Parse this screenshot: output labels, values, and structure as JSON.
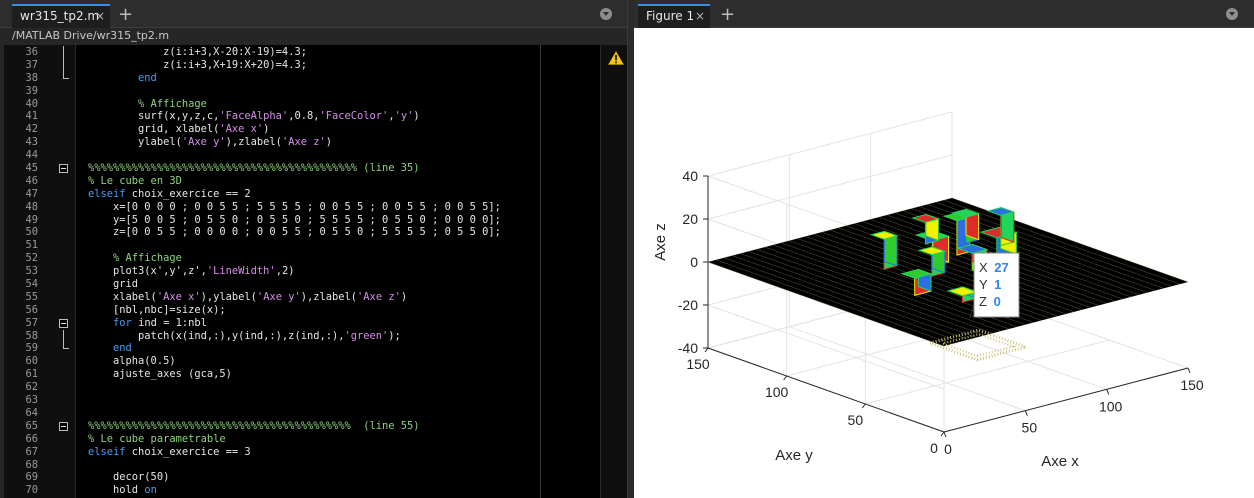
{
  "editor": {
    "tab_label": "wr315_tp2.m",
    "close_glyph": "×",
    "add_glyph": "+",
    "path": "/MATLAB Drive/wr315_tp2.m",
    "warning_icon": "warning-triangle-icon",
    "colors": {
      "keyword": "#4a9cf2",
      "string": "#d58ee8",
      "comment": "#8fd27e",
      "text": "#e6e6e6"
    },
    "lines": [
      {
        "n": "36",
        "fold": "mid",
        "seg": [
          [
            "            z(i:i+3,X-20:X-19)=4.3;",
            ""
          ]
        ]
      },
      {
        "n": "37",
        "fold": "mid",
        "seg": [
          [
            "            z(i:i+3,X+19:X+20)=4.3;",
            ""
          ]
        ]
      },
      {
        "n": "38",
        "fold": "end",
        "seg": [
          [
            "        ",
            ""
          ],
          [
            "end",
            "kw"
          ]
        ]
      },
      {
        "n": "39",
        "fold": "",
        "seg": []
      },
      {
        "n": "40",
        "fold": "",
        "seg": [
          [
            "        ",
            ""
          ],
          [
            "% Affichage",
            "cm"
          ]
        ]
      },
      {
        "n": "41",
        "fold": "",
        "seg": [
          [
            "        surf(x,y,z,c,",
            ""
          ],
          [
            "'FaceAlpha'",
            "str"
          ],
          [
            ",0.8,",
            ""
          ],
          [
            "'FaceColor'",
            "str"
          ],
          [
            ",",
            ""
          ],
          [
            "'y'",
            "str"
          ],
          [
            ")",
            ""
          ]
        ]
      },
      {
        "n": "42",
        "fold": "",
        "seg": [
          [
            "        grid, xlabel(",
            ""
          ],
          [
            "'Axe x'",
            "str"
          ],
          [
            ")",
            ""
          ]
        ]
      },
      {
        "n": "43",
        "fold": "",
        "seg": [
          [
            "        ylabel(",
            ""
          ],
          [
            "'Axe y'",
            "str"
          ],
          [
            "),zlabel(",
            ""
          ],
          [
            "'Axe z'",
            "str"
          ],
          [
            ")",
            ""
          ]
        ]
      },
      {
        "n": "44",
        "fold": "",
        "seg": []
      },
      {
        "n": "45",
        "fold": "box",
        "seg": [
          [
            "%%%%%%%%%%%%%%%%%%%%%%%%%%%%%%%%%%%%%%%%%%% (line 35)",
            "cm"
          ]
        ]
      },
      {
        "n": "46",
        "fold": "",
        "seg": [
          [
            "% Le cube en 3D",
            "cm"
          ]
        ]
      },
      {
        "n": "47",
        "fold": "",
        "seg": [
          [
            "elseif",
            "kw"
          ],
          [
            " choix_exercice == 2",
            ""
          ]
        ]
      },
      {
        "n": "48",
        "fold": "",
        "seg": [
          [
            "    x=[0 0 0 0 ; 0 0 5 5 ; 5 5 5 5 ; 0 0 5 5 ; 0 0 5 5 ; 0 0 5 5];",
            ""
          ]
        ]
      },
      {
        "n": "49",
        "fold": "",
        "seg": [
          [
            "    y=[5 0 0 5 ; 0 5 5 0 ; 0 5 5 0 ; 5 5 5 5 ; 0 5 5 0 ; 0 0 0 0];",
            ""
          ]
        ]
      },
      {
        "n": "50",
        "fold": "",
        "seg": [
          [
            "    z=[0 0 5 5 ; 0 0 0 0 ; 0 0 5 5 ; 0 5 5 0 ; 5 5 5 5 ; 0 5 5 0];",
            ""
          ]
        ]
      },
      {
        "n": "51",
        "fold": "",
        "seg": []
      },
      {
        "n": "52",
        "fold": "",
        "seg": [
          [
            "    ",
            ""
          ],
          [
            "% Affichage",
            "cm"
          ]
        ]
      },
      {
        "n": "53",
        "fold": "",
        "seg": [
          [
            "    plot3(x',y',z',",
            ""
          ],
          [
            "'LineWidth'",
            "str"
          ],
          [
            ",2)",
            ""
          ]
        ]
      },
      {
        "n": "54",
        "fold": "",
        "seg": [
          [
            "    grid",
            ""
          ]
        ]
      },
      {
        "n": "55",
        "fold": "",
        "seg": [
          [
            "    xlabel(",
            ""
          ],
          [
            "'Axe x'",
            "str"
          ],
          [
            "),ylabel(",
            ""
          ],
          [
            "'Axe y'",
            "str"
          ],
          [
            "),zlabel(",
            ""
          ],
          [
            "'Axe z'",
            "str"
          ],
          [
            ")",
            ""
          ]
        ]
      },
      {
        "n": "56",
        "fold": "",
        "seg": [
          [
            "    [nbl,nbc]=size(x);",
            ""
          ]
        ]
      },
      {
        "n": "57",
        "fold": "box",
        "seg": [
          [
            "    ",
            ""
          ],
          [
            "for",
            "kw"
          ],
          [
            " ind = 1:nbl",
            ""
          ]
        ]
      },
      {
        "n": "58",
        "fold": "mid",
        "seg": [
          [
            "        patch(x(ind,:),y(ind,:),z(ind,:),",
            ""
          ],
          [
            "'green'",
            "str"
          ],
          [
            ");",
            ""
          ]
        ]
      },
      {
        "n": "59",
        "fold": "end",
        "seg": [
          [
            "    ",
            ""
          ],
          [
            "end",
            "kw"
          ]
        ]
      },
      {
        "n": "60",
        "fold": "",
        "seg": [
          [
            "    alpha(0.5)",
            ""
          ]
        ]
      },
      {
        "n": "61",
        "fold": "",
        "seg": [
          [
            "    ajuste_axes (gca,5)",
            ""
          ]
        ]
      },
      {
        "n": "62",
        "fold": "",
        "seg": []
      },
      {
        "n": "63",
        "fold": "",
        "seg": []
      },
      {
        "n": "64",
        "fold": "",
        "seg": []
      },
      {
        "n": "65",
        "fold": "box",
        "seg": [
          [
            "%%%%%%%%%%%%%%%%%%%%%%%%%%%%%%%%%%%%%%%%%%  (line 55)",
            "cm"
          ]
        ]
      },
      {
        "n": "66",
        "fold": "",
        "seg": [
          [
            "% Le cube parametrable",
            "cm"
          ]
        ]
      },
      {
        "n": "67",
        "fold": "",
        "seg": [
          [
            "elseif",
            "kw"
          ],
          [
            " choix_exercice == 3",
            ""
          ]
        ]
      },
      {
        "n": "68",
        "fold": "",
        "seg": []
      },
      {
        "n": "69",
        "fold": "",
        "seg": [
          [
            "    decor(50)",
            ""
          ]
        ]
      },
      {
        "n": "70",
        "fold": "",
        "seg": [
          [
            "    hold ",
            ""
          ],
          [
            "on",
            "kw"
          ]
        ]
      }
    ]
  },
  "figure": {
    "tab_label": "Figure 1",
    "close_glyph": "×",
    "add_glyph": "+",
    "datatip": {
      "x_label": "X",
      "x_value": "27",
      "y_label": "Y",
      "y_value": "1",
      "z_label": "Z",
      "z_value": "0",
      "value_color": "#2f86e6"
    },
    "chart_data": {
      "type": "surface",
      "xlabel": "Axe x",
      "ylabel": "Axe y",
      "zlabel": "Axe z",
      "xlim": [
        0,
        150
      ],
      "ylim": [
        0,
        150
      ],
      "zlim": [
        -40,
        40
      ],
      "x_ticks": [
        "0",
        "50",
        "100",
        "150"
      ],
      "y_ticks": [
        "0",
        "50",
        "100",
        "150"
      ],
      "z_ticks": [
        "40",
        "20",
        "0",
        "-20",
        "-40"
      ],
      "grid": true,
      "surface_color": "#000000",
      "object_colors": [
        "#1fd65a",
        "#2ecc2e",
        "#e02b2b",
        "#2b6fe0",
        "#f0f000"
      ]
    }
  }
}
